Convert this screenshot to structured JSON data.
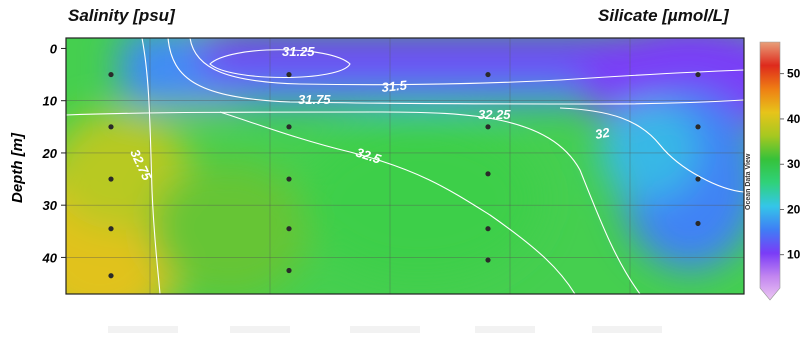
{
  "chart_data": {
    "type": "heatmap",
    "title_left": "Salinity [psu]",
    "title_right": "Silicate [µmol/L]",
    "ylabel": "Depth [m]",
    "ylim": [
      47,
      -2
    ],
    "y_ticks": [
      0,
      10,
      20,
      30,
      40
    ],
    "colorbar": {
      "label": "Silicate [µmol/L]",
      "range": [
        0,
        57
      ],
      "ticks": [
        10,
        20,
        30,
        40,
        50
      ]
    },
    "contour_labels": [
      "31.25",
      "31.5",
      "31.75",
      "32",
      "32.25",
      "32.5",
      "32.75"
    ],
    "watermark": "Ocean Data View",
    "stations": [
      {
        "depths": [
          5,
          15,
          25,
          34.5,
          43.5
        ]
      },
      {
        "depths": [
          5,
          15,
          25,
          34.5,
          42.5
        ]
      },
      {
        "depths": [
          5,
          15,
          24,
          34.5,
          40.5
        ]
      },
      {
        "depths": [
          5,
          15,
          25,
          33.5
        ]
      }
    ]
  },
  "colors": {
    "colorbar_stops": [
      "#ecc6f2",
      "#c286f0",
      "#7a3cf7",
      "#3f7ef5",
      "#34c6e8",
      "#2fd27a",
      "#36c23a",
      "#a6c820",
      "#e7c41a",
      "#ef7e14",
      "#de2a1c",
      "#e8a07a"
    ]
  }
}
